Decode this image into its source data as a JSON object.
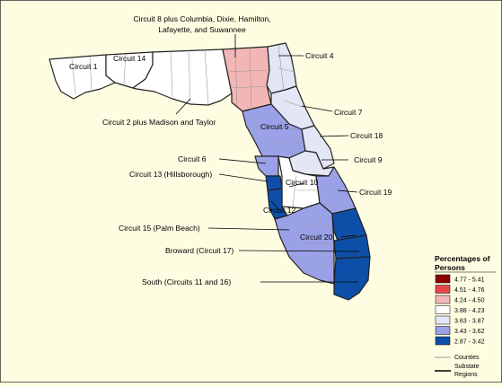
{
  "labels": {
    "circuit1": "Circuit 1",
    "circuit14": "Circuit 14",
    "circuit8_line1": "Circuit 8 plus Columbia, Dixie, Hamilton,",
    "circuit8_line2": "Lafayette, and Suwannee",
    "circuit4": "Circuit 4",
    "circuit2": "Circuit 2 plus Madison and Taylor",
    "circuit7": "Circuit 7",
    "circuit5": "Circuit 5",
    "circuit18": "Circuit 18",
    "circuit6": "Circuit 6",
    "circuit9": "Circuit 9",
    "circuit13": "Circuit 13 (Hillsborough)",
    "circuit10": "Circuit 10",
    "circuit19": "Circuit 19",
    "circuit12": "Circuit 12",
    "circuit15": "Circuit 15 (Palm Beach)",
    "circuit20": "Circuit 20",
    "broward": "Broward (Circuit 17)",
    "south": "South (Circuits 11 and 16)"
  },
  "legend": {
    "title_line1": "Percentages of",
    "title_line2": "Persons",
    "items": [
      {
        "label": "4.77 - 5.41",
        "color": "#8b0000"
      },
      {
        "label": "4.51 - 4.76",
        "color": "#e8454a"
      },
      {
        "label": "4.24 - 4.50",
        "color": "#f3b6b6"
      },
      {
        "label": "3.88 - 4.23",
        "color": "#ffffff"
      },
      {
        "label": "3.63 - 3.87",
        "color": "#e3e6f5"
      },
      {
        "label": "3.43 - 3.62",
        "color": "#9aa1e6"
      },
      {
        "label": "2.87 - 3.42",
        "color": "#0d4fa8"
      }
    ],
    "counties_label": "Counties",
    "substate_line1": "Substate",
    "substate_line2": "Regions"
  },
  "colors": {
    "background": "#fffde1",
    "border": "#333333",
    "county_line": "#999999"
  }
}
